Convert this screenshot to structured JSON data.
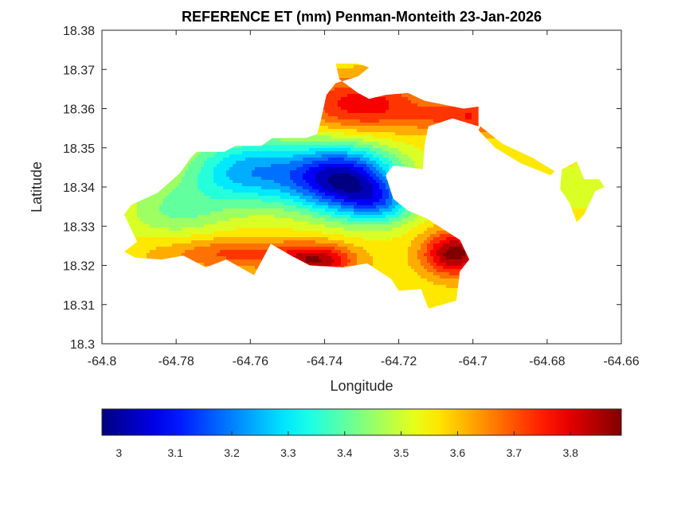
{
  "chart_data": {
    "type": "heatmap",
    "title": "REFERENCE ET (mm) Penman-Monteith 23-Jan-2026",
    "xlabel": "Longitude",
    "ylabel": "Latitude",
    "xlim": [
      -64.8,
      -64.66
    ],
    "ylim": [
      18.3,
      18.38
    ],
    "x_ticks": [
      -64.8,
      -64.78,
      -64.76,
      -64.74,
      -64.72,
      -64.7,
      -64.68,
      -64.66
    ],
    "x_tick_labels": [
      "-64.8",
      "-64.78",
      "-64.76",
      "-64.74",
      "-64.72",
      "-64.7",
      "-64.68",
      "-64.66"
    ],
    "y_ticks": [
      18.3,
      18.31,
      18.32,
      18.33,
      18.34,
      18.35,
      18.36,
      18.37,
      18.38
    ],
    "y_tick_labels": [
      "18.3",
      "18.31",
      "18.32",
      "18.33",
      "18.34",
      "18.35",
      "18.36",
      "18.37",
      "18.38"
    ],
    "grid": false,
    "colormap": "jet",
    "colorbar": {
      "location": "bottom",
      "range": [
        2.97,
        3.89
      ],
      "ticks": [
        3.0,
        3.1,
        3.2,
        3.3,
        3.4,
        3.5,
        3.6,
        3.7,
        3.8
      ],
      "tick_labels": [
        "3",
        "3.1",
        "3.2",
        "3.3",
        "3.4",
        "3.5",
        "3.6",
        "3.7",
        "3.8"
      ]
    },
    "region_mask": [
      {
        "name": "main-island",
        "lonlat": [
          [
            -64.792,
            18.3355
          ],
          [
            -64.785,
            18.3385
          ],
          [
            -64.779,
            18.3435
          ],
          [
            -64.776,
            18.3475
          ],
          [
            -64.7745,
            18.349
          ],
          [
            -64.767,
            18.349
          ],
          [
            -64.764,
            18.3505
          ],
          [
            -64.757,
            18.3505
          ],
          [
            -64.754,
            18.3525
          ],
          [
            -64.745,
            18.3525
          ],
          [
            -64.742,
            18.3535
          ],
          [
            -64.741,
            18.357
          ],
          [
            -64.7395,
            18.3635
          ],
          [
            -64.737,
            18.3665
          ],
          [
            -64.731,
            18.3682
          ],
          [
            -64.728,
            18.3705
          ],
          [
            -64.731,
            18.3715
          ],
          [
            -64.737,
            18.3715
          ],
          [
            -64.736,
            18.3675
          ],
          [
            -64.731,
            18.364
          ],
          [
            -64.728,
            18.3625
          ],
          [
            -64.7235,
            18.3635
          ],
          [
            -64.7175,
            18.364
          ],
          [
            -64.713,
            18.362
          ],
          [
            -64.7025,
            18.36
          ],
          [
            -64.6985,
            18.3605
          ],
          [
            -64.6985,
            18.3555
          ],
          [
            -64.7055,
            18.3575
          ],
          [
            -64.712,
            18.3555
          ],
          [
            -64.713,
            18.351
          ],
          [
            -64.7135,
            18.3445
          ],
          [
            -64.7215,
            18.3455
          ],
          [
            -64.7235,
            18.343
          ],
          [
            -64.7215,
            18.337
          ],
          [
            -64.7175,
            18.334
          ],
          [
            -64.7125,
            18.332
          ],
          [
            -64.7035,
            18.3265
          ],
          [
            -64.701,
            18.3215
          ],
          [
            -64.7035,
            18.3185
          ],
          [
            -64.7045,
            18.311
          ],
          [
            -64.712,
            18.309
          ],
          [
            -64.714,
            18.314
          ],
          [
            -64.72,
            18.3135
          ],
          [
            -64.722,
            18.3165
          ],
          [
            -64.7285,
            18.3205
          ],
          [
            -64.735,
            18.3195
          ],
          [
            -64.744,
            18.32
          ],
          [
            -64.749,
            18.3225
          ],
          [
            -64.7545,
            18.3255
          ],
          [
            -64.759,
            18.3175
          ],
          [
            -64.7665,
            18.3215
          ],
          [
            -64.772,
            18.3195
          ],
          [
            -64.778,
            18.3225
          ],
          [
            -64.784,
            18.3215
          ],
          [
            -64.791,
            18.322
          ],
          [
            -64.794,
            18.3235
          ],
          [
            -64.7905,
            18.326
          ],
          [
            -64.794,
            18.333
          ]
        ]
      },
      {
        "name": "east-peninsula",
        "lonlat": [
          [
            -64.676,
            18.3445
          ],
          [
            -64.672,
            18.3465
          ],
          [
            -64.67,
            18.342
          ],
          [
            -64.666,
            18.342
          ],
          [
            -64.6645,
            18.34
          ],
          [
            -64.667,
            18.339
          ],
          [
            -64.67,
            18.333
          ],
          [
            -64.672,
            18.331
          ],
          [
            -64.674,
            18.336
          ],
          [
            -64.6765,
            18.3395
          ]
        ]
      },
      {
        "name": "east-strip",
        "lonlat": [
          [
            -64.698,
            18.3555
          ],
          [
            -64.692,
            18.351
          ],
          [
            -64.684,
            18.3475
          ],
          [
            -64.678,
            18.344
          ],
          [
            -64.679,
            18.343
          ],
          [
            -64.687,
            18.346
          ],
          [
            -64.694,
            18.35
          ],
          [
            -64.6985,
            18.3545
          ]
        ]
      }
    ],
    "et_field": {
      "base_value": 3.55,
      "components": [
        {
          "lon": -64.735,
          "lat": 18.342,
          "amplitude": -0.5,
          "spread_lon": 0.01,
          "spread_lat": 0.006
        },
        {
          "lon": -64.76,
          "lat": 18.344,
          "amplitude": -0.3,
          "spread_lon": 0.012,
          "spread_lat": 0.006
        },
        {
          "lon": -64.725,
          "lat": 18.336,
          "amplitude": -0.22,
          "spread_lon": 0.007,
          "spread_lat": 0.004
        },
        {
          "lon": -64.78,
          "lat": 18.334,
          "amplitude": -0.12,
          "spread_lon": 0.01,
          "spread_lat": 0.005
        },
        {
          "lon": -64.705,
          "lat": 18.323,
          "amplitude": 0.32,
          "spread_lon": 0.006,
          "spread_lat": 0.004
        },
        {
          "lon": -64.742,
          "lat": 18.321,
          "amplitude": 0.26,
          "spread_lon": 0.007,
          "spread_lat": 0.003
        },
        {
          "lon": -64.73,
          "lat": 18.361,
          "amplitude": 0.22,
          "spread_lon": 0.012,
          "spread_lat": 0.005
        },
        {
          "lon": -64.764,
          "lat": 18.323,
          "amplitude": 0.15,
          "spread_lon": 0.015,
          "spread_lat": 0.003
        },
        {
          "lon": -64.7,
          "lat": 18.358,
          "amplitude": 0.18,
          "spread_lon": 0.01,
          "spread_lat": 0.003
        },
        {
          "lon": -64.67,
          "lat": 18.34,
          "amplitude": -0.05,
          "spread_lon": 0.006,
          "spread_lat": 0.004
        }
      ]
    }
  }
}
